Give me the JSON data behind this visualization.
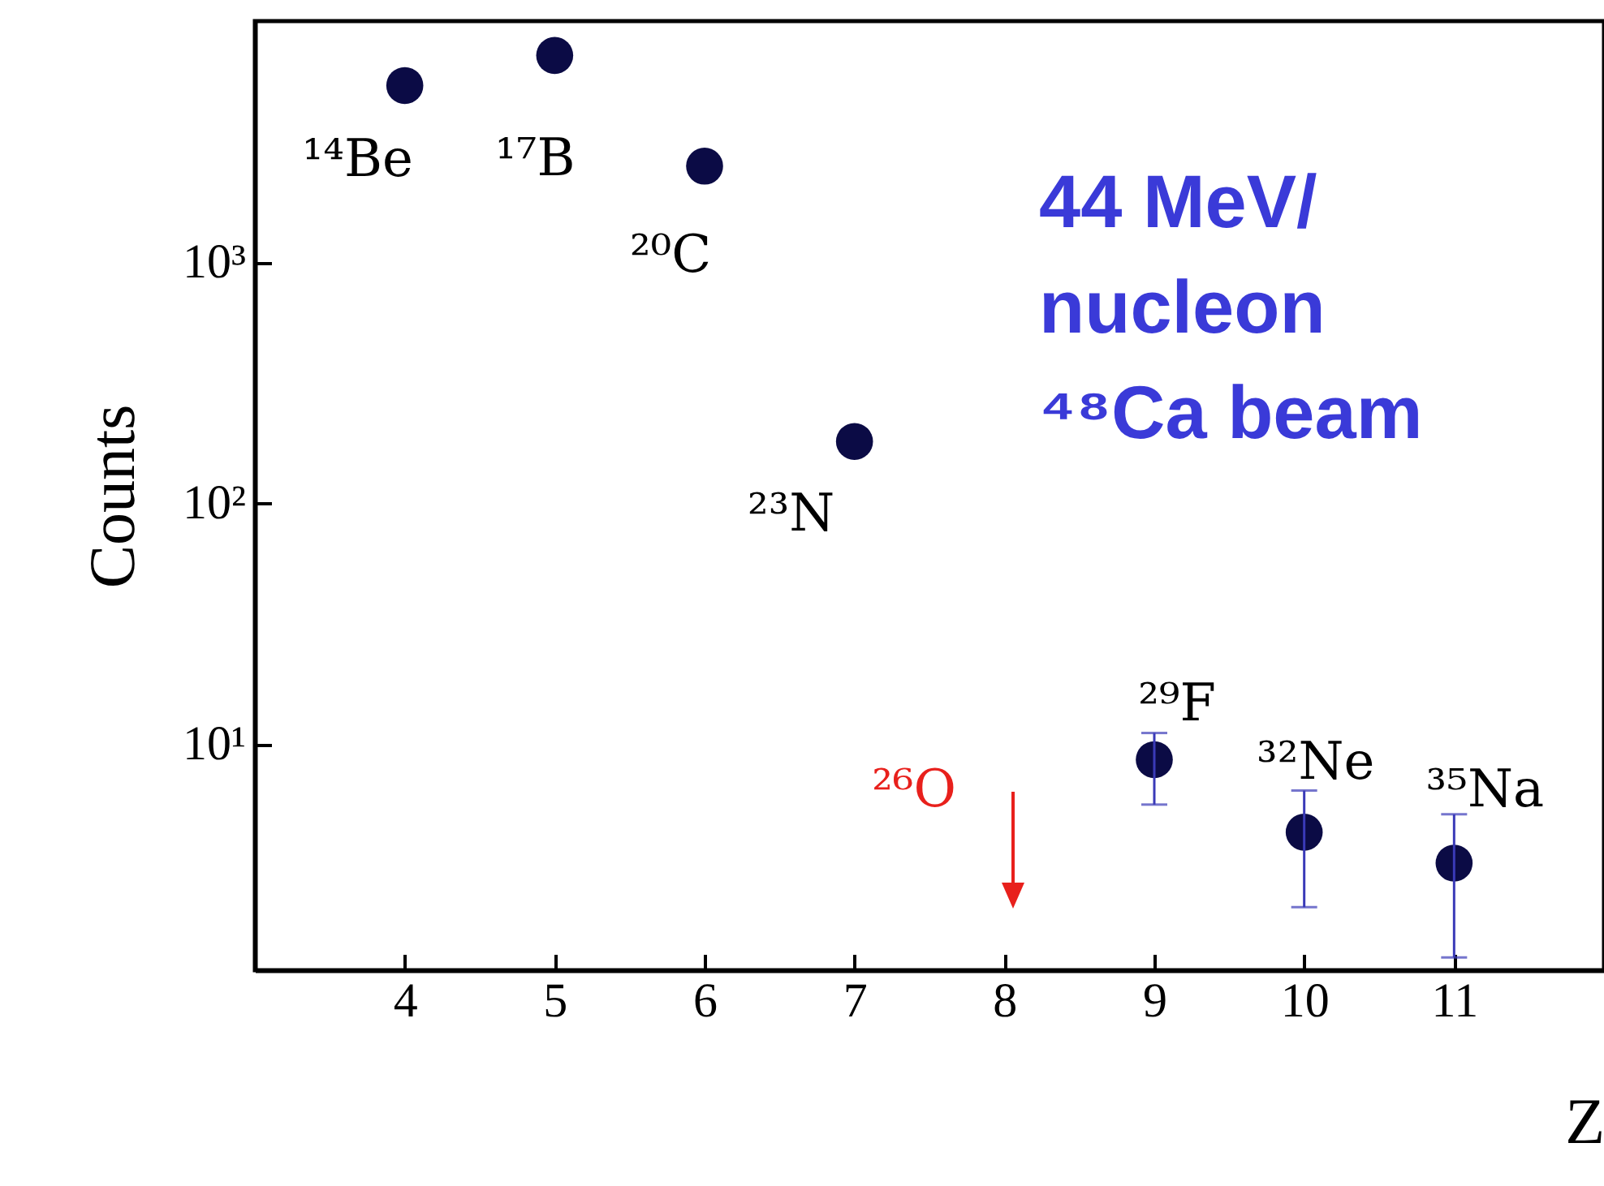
{
  "chart_data": {
    "type": "scatter",
    "xlabel": "Z",
    "ylabel": "Counts",
    "x": [
      4,
      5,
      6,
      7,
      9,
      10,
      11
    ],
    "series": [
      {
        "color": "#0b0b45",
        "values": [
          5400,
          7200,
          2500,
          180,
          8.6,
          4.3,
          3.2
        ],
        "errors": [
          null,
          null,
          null,
          null,
          [
            5.6,
            11.1
          ],
          [
            2.1,
            6.4
          ],
          [
            1.3,
            5.1
          ]
        ]
      }
    ],
    "xlim": [
      3,
      12
    ],
    "xticks": [
      4,
      5,
      6,
      7,
      8,
      9,
      10,
      11
    ],
    "ylim": [
      1.15,
      10000
    ],
    "yticks": [
      {
        "value": 10,
        "label": "10¹"
      },
      {
        "value": 100,
        "label": "10²"
      },
      {
        "value": 1000,
        "label": "10³"
      }
    ],
    "log": true,
    "grid": false,
    "marker": "circle",
    "annotations": [
      {
        "text": "¹⁴Be",
        "x": 4,
        "y": 5400
      },
      {
        "text": "¹⁷B",
        "x": 5,
        "y": 7200
      },
      {
        "text": "²⁰C",
        "x": 6,
        "y": 2500
      },
      {
        "text": "²³N",
        "x": 7,
        "y": 180
      },
      {
        "text": "²⁹F",
        "x": 9,
        "y": 8.6
      },
      {
        "text": "³²Ne",
        "x": 10,
        "y": 4.3
      },
      {
        "text": "³⁵Na",
        "x": 11,
        "y": 3.2
      },
      "²⁶O",
      "44 MeV/\nnucleon\n⁴⁸Ca beam"
    ]
  }
}
